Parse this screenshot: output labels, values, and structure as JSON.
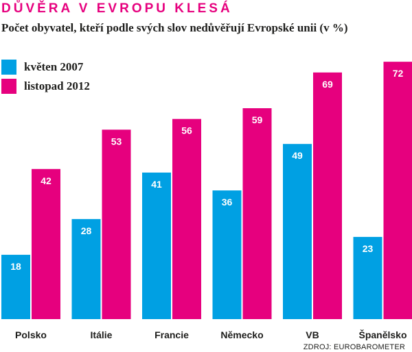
{
  "header": {
    "title": "DŮVĚRA V EVROPU KLESÁ",
    "subtitle": "Počet obyvatel, kteří podle svých slov nedůvěřují Evropské unii (v %)"
  },
  "source": "ZDROJ: EUROBAROMETER",
  "colors": {
    "series_1": "#00a0e3",
    "series_2": "#e6007e",
    "text": "#1d1d1b"
  },
  "chart_data": {
    "type": "bar",
    "title": "DŮVĚRA V EVROPU KLESÁ",
    "subtitle": "Počet obyvatel, kteří podle svých slov nedůvěřují Evropské unii (v %)",
    "categories": [
      "Polsko",
      "Itálie",
      "Francie",
      "Německo",
      "VB",
      "Španělsko"
    ],
    "series": [
      {
        "name": "květen 2007",
        "values": [
          18,
          28,
          41,
          36,
          49,
          23
        ]
      },
      {
        "name": "listopad 2012",
        "values": [
          42,
          53,
          56,
          59,
          69,
          72
        ]
      }
    ],
    "xlabel": "",
    "ylabel": "",
    "ylim": [
      0,
      72
    ],
    "grid": false,
    "legend": "top-left"
  }
}
